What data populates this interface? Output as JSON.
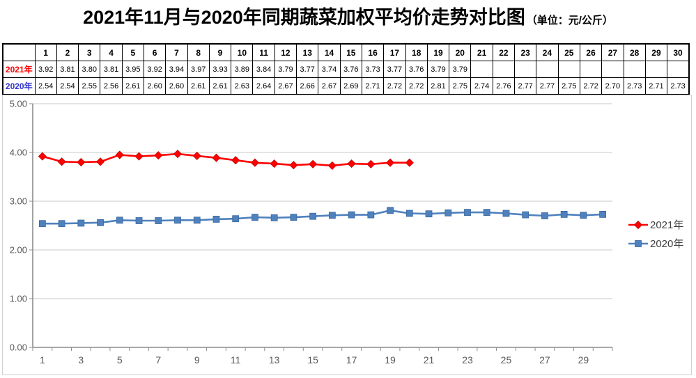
{
  "title": {
    "main": "2021年11月与2020年同期蔬菜加权平均价走势对比图",
    "unit": "（单位：元/公斤）"
  },
  "table": {
    "corner_label": "",
    "day_headers": [
      "1",
      "2",
      "3",
      "4",
      "5",
      "6",
      "7",
      "8",
      "9",
      "10",
      "11",
      "12",
      "13",
      "14",
      "15",
      "16",
      "17",
      "18",
      "19",
      "20",
      "21",
      "22",
      "23",
      "24",
      "25",
      "26",
      "27",
      "28",
      "29",
      "30"
    ],
    "rows": [
      {
        "label": "2021年",
        "label_color": "#ff0000",
        "values": [
          "3.92",
          "3.81",
          "3.80",
          "3.81",
          "3.95",
          "3.92",
          "3.94",
          "3.97",
          "3.93",
          "3.89",
          "3.84",
          "3.79",
          "3.77",
          "3.74",
          "3.76",
          "3.73",
          "3.77",
          "3.76",
          "3.79",
          "3.79",
          "",
          "",
          "",
          "",
          "",
          "",
          "",
          "",
          "",
          ""
        ]
      },
      {
        "label": "2020年",
        "label_color": "#3333cc",
        "values": [
          "2.54",
          "2.54",
          "2.55",
          "2.56",
          "2.61",
          "2.60",
          "2.60",
          "2.61",
          "2.61",
          "2.63",
          "2.64",
          "2.67",
          "2.66",
          "2.67",
          "2.69",
          "2.71",
          "2.72",
          "2.72",
          "2.81",
          "2.75",
          "2.74",
          "2.76",
          "2.77",
          "2.77",
          "2.75",
          "2.72",
          "2.70",
          "2.73",
          "2.71",
          "2.73"
        ]
      }
    ]
  },
  "chart_data": {
    "type": "line",
    "title": "2021年11月与2020年同期蔬菜加权平均价走势对比图",
    "unit": "元/公斤",
    "x": [
      1,
      2,
      3,
      4,
      5,
      6,
      7,
      8,
      9,
      10,
      11,
      12,
      13,
      14,
      15,
      16,
      17,
      18,
      19,
      20,
      21,
      22,
      23,
      24,
      25,
      26,
      27,
      28,
      29,
      30
    ],
    "series": [
      {
        "name": "2021年",
        "color": "#ff0000",
        "marker": "diamond",
        "marker_border": "#c00000",
        "values": [
          3.92,
          3.81,
          3.8,
          3.81,
          3.95,
          3.92,
          3.94,
          3.97,
          3.93,
          3.89,
          3.84,
          3.79,
          3.77,
          3.74,
          3.76,
          3.73,
          3.77,
          3.76,
          3.79,
          3.79
        ]
      },
      {
        "name": "2020年",
        "color": "#4f81bd",
        "marker": "square",
        "marker_border": "#3a679c",
        "values": [
          2.54,
          2.54,
          2.55,
          2.56,
          2.61,
          2.6,
          2.6,
          2.61,
          2.61,
          2.63,
          2.64,
          2.67,
          2.66,
          2.67,
          2.69,
          2.71,
          2.72,
          2.72,
          2.81,
          2.75,
          2.74,
          2.76,
          2.77,
          2.77,
          2.75,
          2.72,
          2.7,
          2.73,
          2.71,
          2.73
        ]
      }
    ],
    "ylim": [
      0,
      5
    ],
    "ytick_labels": [
      "0.00",
      "1.00",
      "2.00",
      "3.00",
      "4.00",
      "5.00"
    ],
    "xtick_labels": [
      "1",
      "3",
      "5",
      "7",
      "9",
      "11",
      "13",
      "15",
      "17",
      "19",
      "21",
      "23",
      "25",
      "27",
      "29"
    ],
    "grid": true,
    "legend_position": "right",
    "legend": [
      "2021年",
      "2020年"
    ],
    "colors": {
      "grid": "#c9c9c9",
      "axis": "#8c8c8c",
      "tick_label": "#595959",
      "legend_text": "#404040"
    }
  }
}
